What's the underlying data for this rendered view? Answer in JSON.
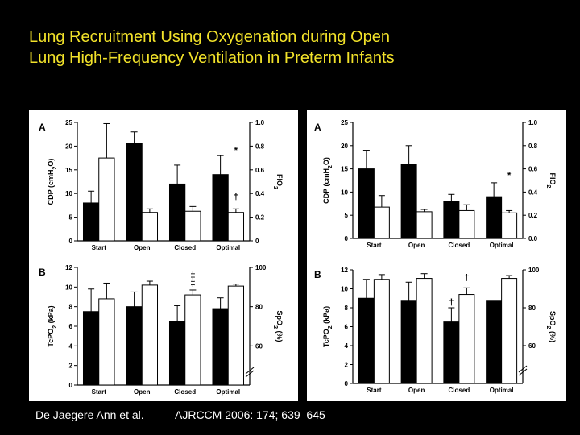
{
  "slide": {
    "title_line1": "Lung Recruitment Using Oxygenation during Open",
    "title_line2": "Lung High-Frequency Ventilation in Preterm Infants",
    "author": "De Jaegere Ann et al.",
    "journal": "AJRCCM 2006: 174; 639–645",
    "colors": {
      "background": "#000000",
      "title": "#f2e22a",
      "text": "#ffffff"
    }
  },
  "chart_data": [
    {
      "panel": "left",
      "label": "A",
      "type": "bar",
      "categories": [
        "Start",
        "Open",
        "Closed",
        "Optimal"
      ],
      "ylabel": "CDP (cmH2O)",
      "ylim": [
        0,
        25
      ],
      "yticks": [
        0,
        5,
        10,
        15,
        20,
        25
      ],
      "y2label": "FIO2",
      "y2lim": [
        0,
        1.0
      ],
      "y2ticks": [
        "0",
        "0.2",
        "0.4",
        "0.6",
        "0.8",
        "1.0"
      ],
      "series": [
        {
          "axis": "left",
          "fill": "#000000",
          "values": [
            8,
            20.5,
            12,
            14
          ],
          "err": [
            2.5,
            2.5,
            4,
            4
          ]
        },
        {
          "axis": "right",
          "fill": "#ffffff",
          "values": [
            0.7,
            0.24,
            0.25,
            0.24
          ],
          "err": [
            0.29,
            0.03,
            0.04,
            0.03
          ]
        }
      ],
      "annotations": [
        {
          "text": "*",
          "category": 3,
          "y": 0.74,
          "axis": "right"
        },
        {
          "text": "†",
          "category": 3,
          "y": 0.35,
          "axis": "right"
        }
      ]
    },
    {
      "panel": "left",
      "label": "B",
      "type": "bar",
      "categories": [
        "Start",
        "Open",
        "Closed",
        "Optimal"
      ],
      "ylabel": "TcPO2 (kPa)",
      "ylim": [
        0,
        12
      ],
      "yticks": [
        0,
        2,
        4,
        6,
        8,
        10,
        12
      ],
      "y2label": "SpO2 (%)",
      "y2lim": [
        40,
        100
      ],
      "y2ticks": [
        "60",
        "80",
        "100"
      ],
      "axis_break": true,
      "series": [
        {
          "axis": "left",
          "fill": "#000000",
          "values": [
            7.5,
            8,
            6.5,
            7.8
          ],
          "err": [
            2.3,
            1.5,
            1.6,
            1.1
          ]
        },
        {
          "axis": "right",
          "fill": "#ffffff",
          "values": [
            84,
            91,
            86,
            90.5
          ],
          "err": [
            8,
            2,
            2.5,
            1
          ]
        }
      ],
      "annotations": [
        {
          "text": "‡",
          "category": 2,
          "y": 90.5,
          "axis": "right"
        },
        {
          "text": "‡",
          "category": 2,
          "y": 94.5,
          "axis": "right"
        }
      ]
    },
    {
      "panel": "right",
      "label": "A",
      "type": "bar",
      "categories": [
        "Start",
        "Open",
        "Closed",
        "Optimal"
      ],
      "ylabel": "CDP (cmH2O)",
      "ylim": [
        0,
        25
      ],
      "yticks": [
        0,
        5,
        10,
        15,
        20,
        25
      ],
      "y2label": "FIO2",
      "y2lim": [
        0,
        1.0
      ],
      "y2ticks": [
        "0.0",
        "0.2",
        "0.4",
        "0.6",
        "0.8",
        "1.0"
      ],
      "series": [
        {
          "axis": "left",
          "fill": "#000000",
          "values": [
            15,
            16,
            8,
            9
          ],
          "err": [
            4,
            4,
            1.5,
            3
          ]
        },
        {
          "axis": "right",
          "fill": "#ffffff",
          "values": [
            0.27,
            0.23,
            0.24,
            0.22
          ],
          "err": [
            0.1,
            0.02,
            0.05,
            0.02
          ]
        }
      ],
      "annotations": [
        {
          "text": "*",
          "category": 3,
          "y": 0.52,
          "axis": "right"
        }
      ]
    },
    {
      "panel": "right",
      "label": "B",
      "type": "bar",
      "categories": [
        "Start",
        "Open",
        "Closed",
        "Optimal"
      ],
      "ylabel": "TcPO2 (kPa)",
      "ylim": [
        0,
        12
      ],
      "yticks": [
        0,
        2,
        4,
        6,
        8,
        10,
        12
      ],
      "y2label": "SpO2 (%)",
      "y2lim": [
        40,
        100
      ],
      "y2ticks": [
        "60",
        "80",
        "100"
      ],
      "axis_break": true,
      "series": [
        {
          "axis": "left",
          "fill": "#000000",
          "values": [
            9,
            8.7,
            6.5,
            8.7
          ],
          "err": [
            2,
            2,
            1.5,
            0
          ]
        },
        {
          "axis": "right",
          "fill": "#ffffff",
          "values": [
            95,
            95.5,
            87,
            95.5
          ],
          "err": [
            2.5,
            2.5,
            3.5,
            1.5
          ]
        }
      ],
      "annotations": [
        {
          "text": "†",
          "category": 2,
          "y": 8.3,
          "axis": "left"
        },
        {
          "text": "†",
          "category": 2,
          "y": 94.5,
          "axis": "right"
        }
      ]
    }
  ]
}
